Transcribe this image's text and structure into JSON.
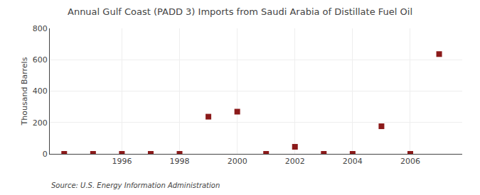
{
  "chart_data": {
    "type": "scatter",
    "title": "Annual Gulf Coast (PADD 3) Imports from Saudi Arabia of Distillate Fuel Oil",
    "ylabel": "Thousand Barrels",
    "annotations": [
      "Source: U.S. Energy Information Administration"
    ],
    "x": [
      1994,
      1995,
      1996,
      1997,
      1998,
      1999,
      2000,
      2001,
      2002,
      2003,
      2004,
      2005,
      2006,
      2007
    ],
    "values": [
      0,
      0,
      0,
      0,
      0,
      237,
      269,
      0,
      45,
      0,
      0,
      176,
      0,
      636
    ],
    "color": "#8b1a1a",
    "marker": "square",
    "xlim": [
      1993.5,
      2007.8
    ],
    "ylim": [
      0,
      800
    ],
    "xticks": [
      1996,
      1998,
      2000,
      2002,
      2004,
      2006
    ],
    "yticks": [
      0,
      200,
      400,
      600,
      800
    ],
    "grid": true
  }
}
